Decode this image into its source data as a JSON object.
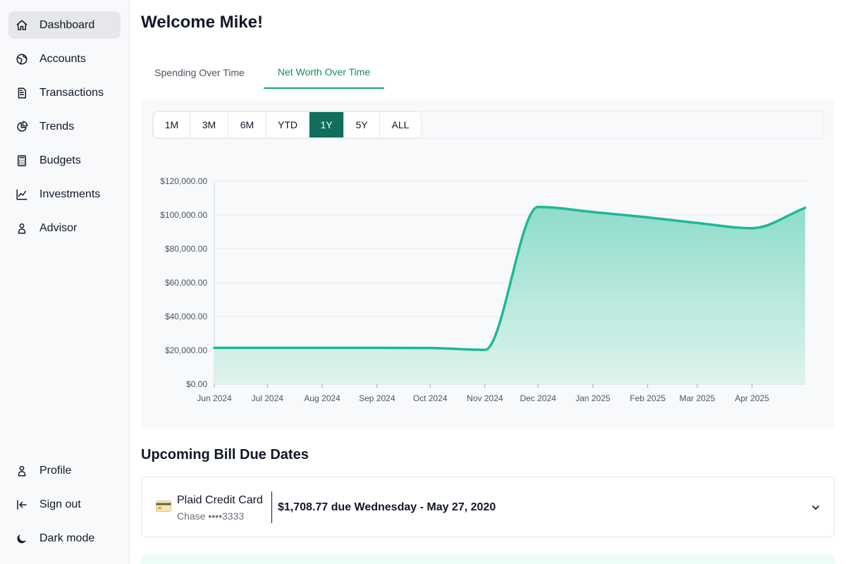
{
  "sidebar": {
    "top_items": [
      {
        "label": "Dashboard",
        "icon": "home-icon",
        "active": true
      },
      {
        "label": "Accounts",
        "icon": "globe-icon",
        "active": false
      },
      {
        "label": "Transactions",
        "icon": "receipt-icon",
        "active": false
      },
      {
        "label": "Trends",
        "icon": "pie-chart-icon",
        "active": false
      },
      {
        "label": "Budgets",
        "icon": "calculator-icon",
        "active": false
      },
      {
        "label": "Investments",
        "icon": "line-chart-icon",
        "active": false
      },
      {
        "label": "Advisor",
        "icon": "user-icon",
        "active": false
      }
    ],
    "bottom_items": [
      {
        "label": "Profile",
        "icon": "user-icon"
      },
      {
        "label": "Sign out",
        "icon": "sign-out-icon"
      },
      {
        "label": "Dark mode",
        "icon": "moon-icon"
      }
    ]
  },
  "header": {
    "title": "Welcome Mike!"
  },
  "tabs": [
    {
      "label": "Spending Over Time",
      "active": false
    },
    {
      "label": "Net Worth Over Time",
      "active": true
    }
  ],
  "ranges": [
    {
      "label": "1M",
      "active": false
    },
    {
      "label": "3M",
      "active": false
    },
    {
      "label": "6M",
      "active": false
    },
    {
      "label": "YTD",
      "active": false
    },
    {
      "label": "1Y",
      "active": true
    },
    {
      "label": "5Y",
      "active": false
    },
    {
      "label": "ALL",
      "active": false
    }
  ],
  "colors": {
    "accent": "#14a586",
    "accent_dark": "#0f6e5c",
    "line": "#1db897",
    "area_top": "#8fdccb",
    "area_bottom": "#dff4ee"
  },
  "chart_data": {
    "type": "area",
    "x": [
      "2024-06-01",
      "2024-07-01",
      "2024-08-01",
      "2024-09-01",
      "2024-10-01",
      "2024-11-01",
      "2024-12-01",
      "2025-01-01",
      "2025-02-01",
      "2025-03-01",
      "2025-04-01",
      "2025-05-01"
    ],
    "values": [
      21500,
      21500,
      21500,
      21500,
      21400,
      20300,
      104800,
      101800,
      98600,
      95300,
      92200,
      104300
    ],
    "ylim": [
      0,
      120000
    ],
    "yticks": [
      0,
      20000,
      40000,
      60000,
      80000,
      100000,
      120000
    ],
    "ytick_labels": [
      "$0.00",
      "$20,000.00",
      "$40,000.00",
      "$60,000.00",
      "$80,000.00",
      "$100,000.00",
      "$120,000.00"
    ],
    "xticks": [
      "2024-06-01",
      "2024-07-01",
      "2024-08-01",
      "2024-09-01",
      "2024-10-01",
      "2024-11-01",
      "2024-12-01",
      "2025-01-01",
      "2025-02-01",
      "2025-03-01",
      "2025-04-01"
    ],
    "xtick_labels": [
      "Jun 2024",
      "Jul 2024",
      "Aug 2024",
      "Sep 2024",
      "Oct 2024",
      "Nov 2024",
      "Dec 2024",
      "Jan 2025",
      "Feb 2025",
      "Mar 2025",
      "Apr 2025"
    ],
    "xrange": [
      "2024-06-01",
      "2025-05-01"
    ],
    "grid": true,
    "title": "",
    "xlabel": "",
    "ylabel": ""
  },
  "bills": {
    "title": "Upcoming Bill Due Dates",
    "items": [
      {
        "name": "Plaid Credit Card",
        "institution": "Chase ••••3333",
        "due_text": "$1,708.77 due Wednesday - May 27, 2020"
      }
    ]
  }
}
